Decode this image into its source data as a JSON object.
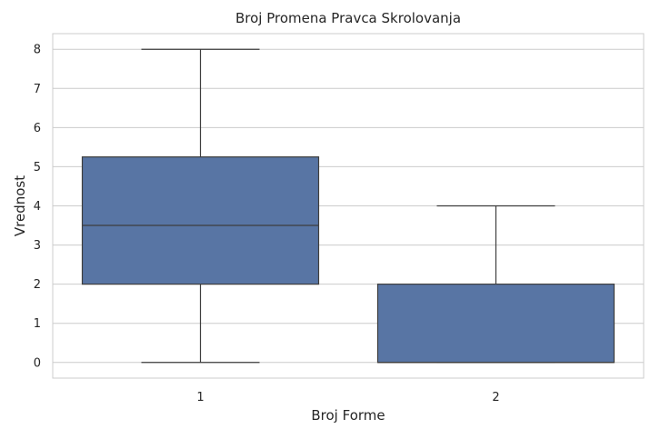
{
  "chart_data": {
    "type": "box",
    "title": "Broj Promena Pravca Skrolovanja",
    "xlabel": "Broj Forme",
    "ylabel": "Vrednost",
    "categories": [
      "1",
      "2"
    ],
    "boxes": [
      {
        "category": "1",
        "whisker_low": 0,
        "q1": 2,
        "median": 3.5,
        "q3": 5.25,
        "whisker_high": 8
      },
      {
        "category": "2",
        "whisker_low": 0,
        "q1": 0,
        "median": 0,
        "q3": 2,
        "whisker_high": 4
      }
    ],
    "yticks": [
      "0",
      "1",
      "2",
      "3",
      "4",
      "5",
      "6",
      "7",
      "8"
    ],
    "ylim": [
      -0.4,
      8.4
    ],
    "grid": true,
    "box_color": "#5875a4",
    "line_color": "#3d3d3d",
    "grid_color": "#cccccc"
  }
}
